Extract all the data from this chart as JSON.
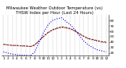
{
  "title": "Milwaukee Weather Outdoor Temperature (vs) THSW Index per Hour (Last 24 Hours)",
  "hours": [
    0,
    1,
    2,
    3,
    4,
    5,
    6,
    7,
    8,
    9,
    10,
    11,
    12,
    13,
    14,
    15,
    16,
    17,
    18,
    19,
    20,
    21,
    22,
    23
  ],
  "hour_labels": [
    "1",
    "2",
    "3",
    "4",
    "5",
    "6",
    "7",
    "8",
    "9",
    "10",
    "11",
    "12",
    "1",
    "2",
    "3",
    "4",
    "5",
    "6",
    "7",
    "8",
    "9",
    "10",
    "11",
    "12"
  ],
  "temp": [
    36,
    35,
    34,
    34,
    33,
    33,
    32,
    34,
    42,
    50,
    57,
    62,
    65,
    67,
    66,
    64,
    60,
    55,
    50,
    46,
    44,
    42,
    40,
    39
  ],
  "thsw": [
    22,
    20,
    18,
    17,
    16,
    16,
    15,
    22,
    40,
    58,
    72,
    80,
    83,
    85,
    78,
    72,
    63,
    52,
    42,
    35,
    30,
    26,
    24,
    22
  ],
  "black_line": [
    36,
    35,
    34,
    34,
    33,
    33,
    32,
    35,
    43,
    51,
    58,
    63,
    66,
    68,
    67,
    65,
    61,
    56,
    51,
    47,
    45,
    43,
    41,
    40
  ],
  "temp_color": "#dd0000",
  "thsw_color": "#0000dd",
  "black_color": "#000000",
  "bg_color": "#ffffff",
  "grid_color": "#888888",
  "ylim": [
    15,
    90
  ],
  "ytick_vals": [
    20,
    30,
    40,
    50,
    60,
    70,
    80
  ],
  "ytick_labels": [
    "20",
    "30",
    "40",
    "50",
    "60",
    "70",
    "80"
  ],
  "title_fontsize": 3.8,
  "tick_fontsize": 3.2,
  "line_width": 0.8
}
